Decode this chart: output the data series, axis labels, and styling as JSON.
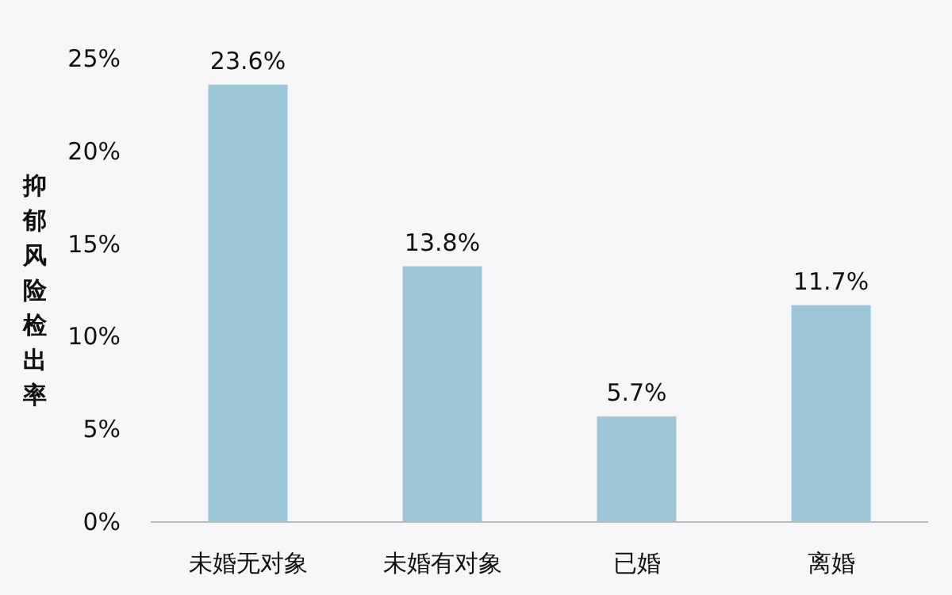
{
  "chart_data": {
    "type": "bar",
    "ylabel": "抑郁风险检出率",
    "categories": [
      "未婚无对象",
      "未婚有对象",
      "已婚",
      "离婚"
    ],
    "values": [
      23.6,
      13.8,
      5.7,
      11.7
    ],
    "value_labels": [
      "23.6%",
      "13.8%",
      "5.7%",
      "11.7%"
    ],
    "color": "#9cc7d8",
    "ylim": [
      0,
      25
    ],
    "yticks": [
      {
        "value": 0,
        "label": "0%"
      },
      {
        "value": 5,
        "label": "5%"
      },
      {
        "value": 10,
        "label": "10%"
      },
      {
        "value": 15,
        "label": "15%"
      },
      {
        "value": 20,
        "label": "20%"
      },
      {
        "value": 25,
        "label": "25%"
      }
    ]
  }
}
